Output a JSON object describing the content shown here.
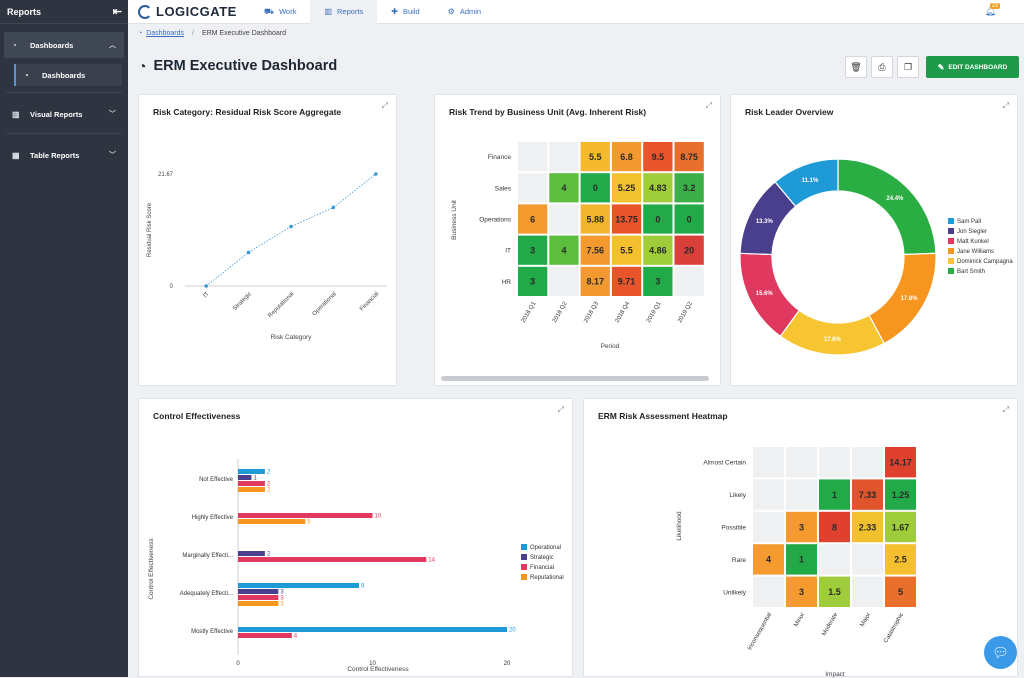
{
  "sidebar": {
    "header": "Reports",
    "items": [
      {
        "label": "Dashboards"
      },
      {
        "label": "Dashboards"
      },
      {
        "label": "Visual Reports"
      },
      {
        "label": "Table Reports"
      }
    ]
  },
  "topbar": {
    "brand": "LOGICGATE",
    "nav": [
      {
        "label": "Work"
      },
      {
        "label": "Reports"
      },
      {
        "label": "Build"
      },
      {
        "label": "Admin"
      }
    ],
    "notifications_count": "23"
  },
  "breadcrumb": {
    "root": "Dashboards",
    "current": "ERM Executive Dashboard"
  },
  "page": {
    "title": "ERM Executive Dashboard",
    "edit_label": "EDIT DASHBOARD"
  },
  "cards": {
    "residual": "Risk Category: Residual Risk Score Aggregate",
    "trend": "Risk Trend by Business Unit (Avg. Inherent Risk)",
    "leader": "Risk Leader Overview",
    "control": "Control Effectiveness",
    "heatmap": "ERM Risk Assessment Heatmap"
  },
  "chart_data": [
    {
      "id": "residual",
      "type": "line",
      "title": "Risk Category: Residual Risk Score Aggregate",
      "xlabel": "Risk Category",
      "ylabel": "Residual Risk Score",
      "categories": [
        "IT",
        "Strategic",
        "Reputational",
        "Operational",
        "Financial"
      ],
      "values": [
        0,
        6.5,
        11.5,
        15.2,
        21.67
      ],
      "yticks": [
        "0",
        "21.67"
      ],
      "ylim": [
        0,
        21.67
      ],
      "color": "#3a9ad9"
    },
    {
      "id": "trend",
      "type": "heatmap",
      "title": "Risk Trend by Business Unit (Avg. Inherent Risk)",
      "xlabel": "Period",
      "ylabel": "Business Unit",
      "rows": [
        "Finance",
        "Sales",
        "Operations",
        "IT",
        "HR"
      ],
      "cols": [
        "2018 Q1",
        "2018 Q2",
        "2018 Q3",
        "2018 Q4",
        "2019 Q1",
        "2019 Q2"
      ],
      "cells": [
        [
          null,
          null,
          "5.5",
          "6.8",
          "9.5",
          "8.75"
        ],
        [
          null,
          "4",
          "0",
          "5.25",
          "4.83",
          "3.2"
        ],
        [
          "6",
          null,
          "5.88",
          "13.75",
          "0",
          "0"
        ],
        [
          "3",
          "4",
          "7.56",
          "5.5",
          "4.86",
          "20"
        ],
        [
          "3",
          null,
          "8.17",
          "9.71",
          "3",
          null
        ]
      ],
      "colors": [
        [
          null,
          null,
          "#f5b82e",
          "#f29a30",
          "#e8552a",
          "#e8702c"
        ],
        [
          null,
          "#5cbe3c",
          "#22a948",
          "#f2c12e",
          "#9fcc3a",
          "#3cae48"
        ],
        [
          "#f59a2e",
          null,
          "#f2b530",
          "#e8552a",
          "#22a948",
          "#22a948"
        ],
        [
          "#22a948",
          "#5cbe3c",
          "#f29a30",
          "#f5c030",
          "#9fcc3a",
          "#d9403a"
        ],
        [
          "#22a948",
          null,
          "#f29a30",
          "#e8552a",
          "#22a948",
          null
        ]
      ]
    },
    {
      "id": "leader",
      "type": "pie",
      "title": "Risk Leader Overview",
      "labels": [
        "Sam Pall",
        "Jon Siegler",
        "Matt Kunkel",
        "Jane Williams",
        "Dominick Campagna",
        "Bart Smith"
      ],
      "values": [
        11.1,
        13.3,
        15.6,
        17.8,
        17.8,
        24.4
      ],
      "value_labels": [
        "11.1%",
        "13.3%",
        "15.6%",
        "17.8%",
        "17.8%",
        "24.4%"
      ],
      "colors": [
        "#1e9bd7",
        "#4a3f8c",
        "#e0385f",
        "#f7961e",
        "#f7c531",
        "#2aae43"
      ],
      "start_order": [
        "Bart Smith",
        "Jane Williams",
        "Dominick Campagna",
        "Matt Kunkel",
        "Jon Siegler",
        "Sam Pall"
      ],
      "legend": "right"
    },
    {
      "id": "control",
      "type": "bar",
      "orientation": "horizontal",
      "title": "Control Effectiveness",
      "xlabel": "Control Effectiveness",
      "ylabel": "Control Effectiveness",
      "categories": [
        "Not Effective",
        "Highly Effective",
        "Marginally Effecti...",
        "Adequately Effecti...",
        "Mostly Effective"
      ],
      "xlim": [
        0,
        20
      ],
      "xticks": [
        "0",
        "10",
        "20"
      ],
      "series": [
        {
          "name": "Operational",
          "color": "#1e9bd7",
          "values": [
            2,
            null,
            null,
            9,
            20
          ]
        },
        {
          "name": "Strategic",
          "color": "#4a3f8c",
          "values": [
            1,
            null,
            2,
            3,
            null
          ]
        },
        {
          "name": "Financial",
          "color": "#e0385f",
          "values": [
            2,
            10,
            14,
            3,
            4
          ]
        },
        {
          "name": "Reputational",
          "color": "#f7961e",
          "values": [
            2,
            5,
            null,
            3,
            null
          ]
        }
      ],
      "value_labels": [
        [
          "2",
          "1",
          "2",
          "2"
        ],
        [
          null,
          null,
          "10",
          "5"
        ],
        [
          null,
          "2",
          "14",
          null
        ],
        [
          "9",
          "3",
          "3",
          "3"
        ],
        [
          "20",
          null,
          "4",
          null
        ]
      ],
      "legend": "right"
    },
    {
      "id": "heatmap",
      "type": "heatmap",
      "title": "ERM Risk Assessment Heatmap",
      "xlabel": "Impact",
      "ylabel": "Likelihood",
      "rows": [
        "Almost Certain",
        "Likely",
        "Possible",
        "Rare",
        "Unlikely"
      ],
      "cols": [
        "Inconsequential",
        "Minor",
        "Moderate",
        "Major",
        "Catastrophic"
      ],
      "cells": [
        [
          null,
          null,
          null,
          null,
          "14.17"
        ],
        [
          null,
          null,
          "1",
          "7.33",
          "1.25"
        ],
        [
          null,
          "3",
          "8",
          "2.33",
          "1.67"
        ],
        [
          "4",
          "1",
          null,
          null,
          "2.5"
        ],
        [
          null,
          "3",
          "1.5",
          null,
          "5"
        ]
      ],
      "colors": [
        [
          null,
          null,
          null,
          null,
          "#e0412e"
        ],
        [
          null,
          null,
          "#22a948",
          "#e0552c",
          "#22a948"
        ],
        [
          null,
          "#f59a2e",
          "#e0412e",
          "#f2c12e",
          "#9fcc3a"
        ],
        [
          "#f59a2e",
          "#22a948",
          null,
          null,
          "#f5c030"
        ],
        [
          null,
          "#f59a2e",
          "#9fcc3a",
          null,
          "#e8702c"
        ]
      ]
    }
  ]
}
